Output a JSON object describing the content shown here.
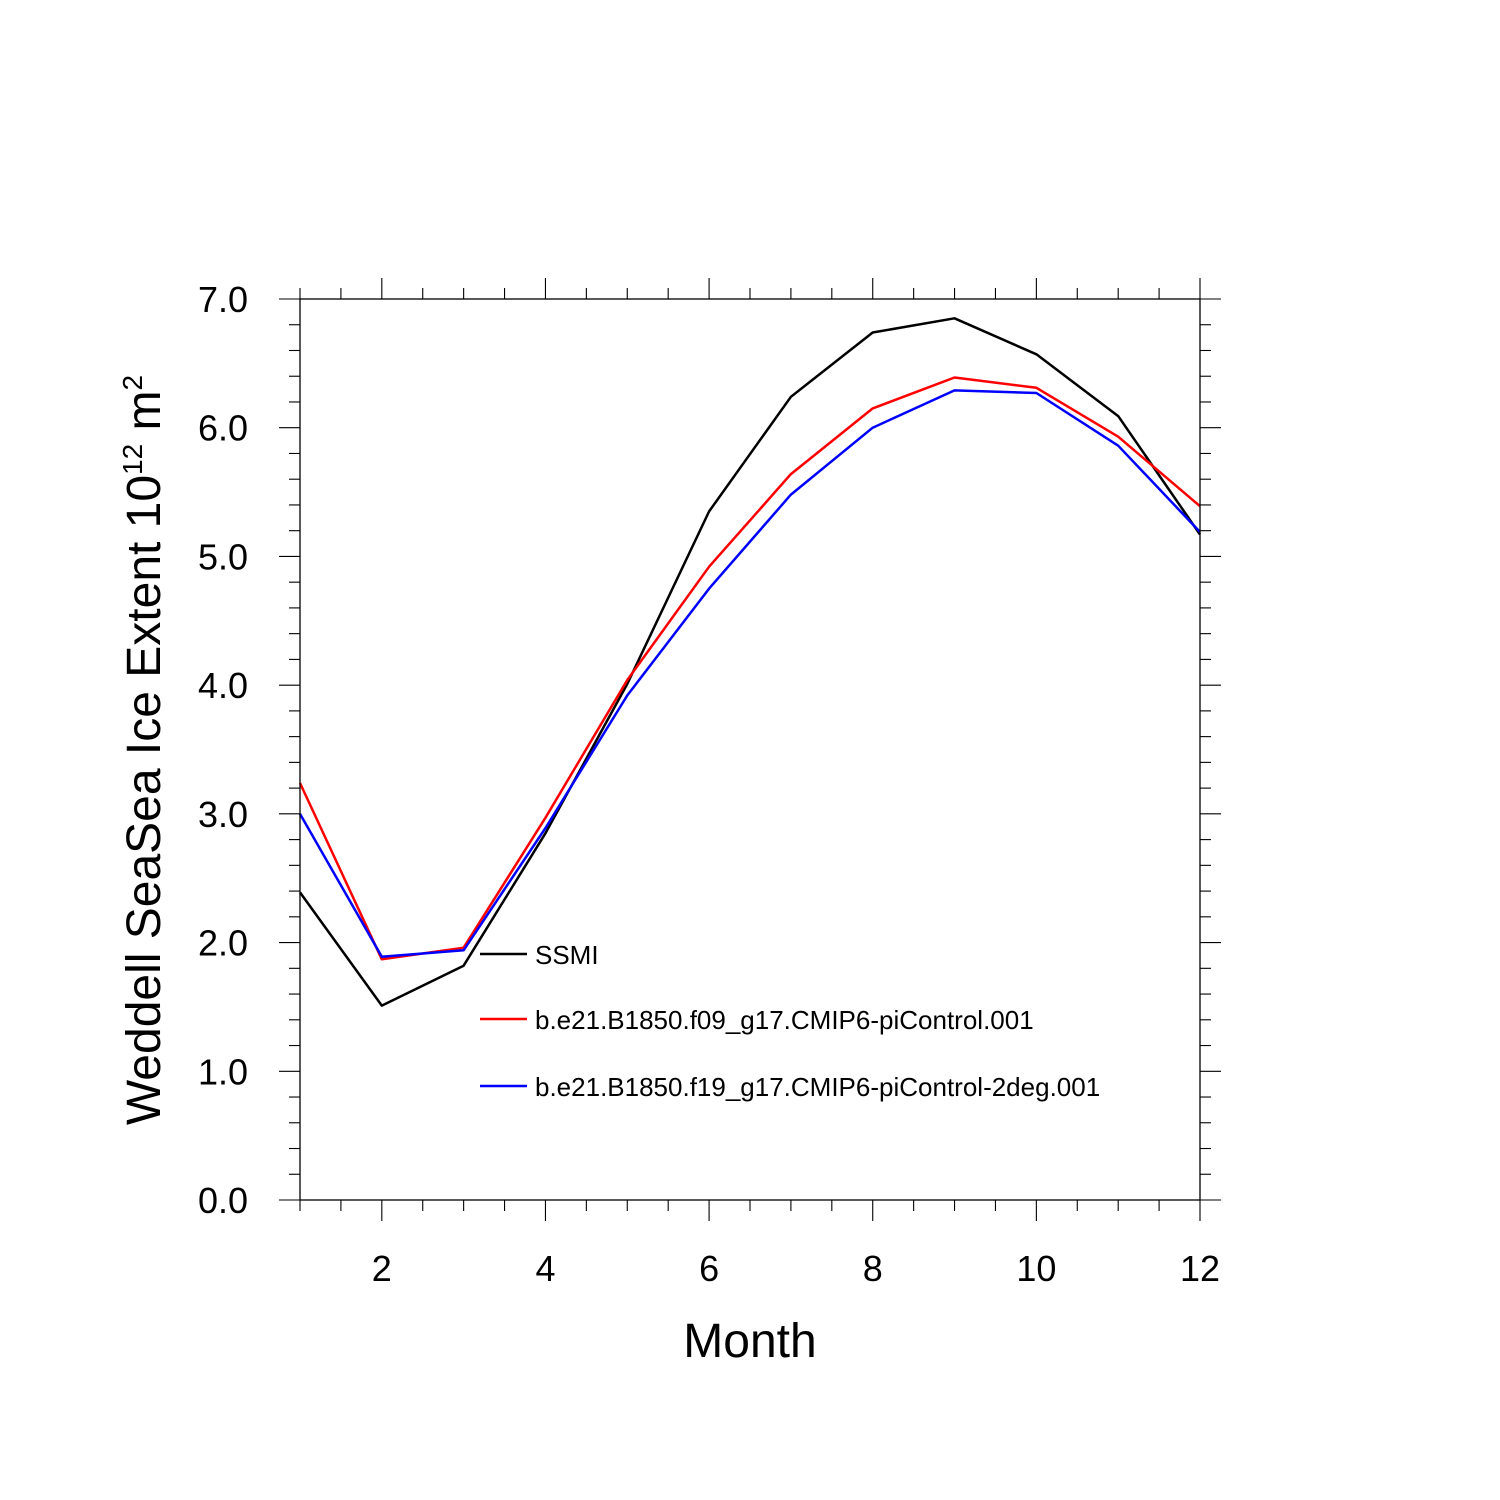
{
  "chart_data": {
    "type": "line",
    "title": "",
    "xlabel": "Month",
    "ylabel": "Weddell SeaSea Ice Extent 10",
    "ylabel_exponent": "12",
    "ylabel_unit": " m",
    "ylabel_unit_exponent": "2",
    "xlim": [
      1,
      12
    ],
    "ylim": [
      0,
      7
    ],
    "x": [
      1,
      2,
      3,
      4,
      5,
      6,
      7,
      8,
      9,
      10,
      11,
      12
    ],
    "x_ticks": [
      2,
      4,
      6,
      8,
      10,
      12
    ],
    "x_tick_labels": [
      "2",
      "4",
      "6",
      "8",
      "10",
      "12"
    ],
    "y_ticks": [
      0,
      1,
      2,
      3,
      4,
      5,
      6,
      7
    ],
    "y_tick_labels": [
      "0.0",
      "1.0",
      "2.0",
      "3.0",
      "4.0",
      "5.0",
      "6.0",
      "7.0"
    ],
    "grid": false,
    "legend_position": "center-right",
    "series": [
      {
        "name": "SSMI",
        "color": "#000000",
        "values": [
          2.39,
          1.51,
          1.82,
          2.85,
          4.01,
          5.35,
          6.24,
          6.74,
          6.85,
          6.57,
          6.09,
          5.17
        ]
      },
      {
        "name": "b.e21.B1850.f09_g17.CMIP6-piControl.001",
        "color": "#ff0000",
        "values": [
          3.24,
          1.87,
          1.96,
          2.97,
          4.04,
          4.92,
          5.64,
          6.15,
          6.39,
          6.31,
          5.93,
          5.39
        ]
      },
      {
        "name": "b.e21.B1850.f19_g17.CMIP6-piControl-2deg.001",
        "color": "#0000ff",
        "values": [
          3.0,
          1.89,
          1.94,
          2.89,
          3.92,
          4.75,
          5.48,
          6.0,
          6.29,
          6.27,
          5.86,
          5.19
        ]
      }
    ]
  }
}
